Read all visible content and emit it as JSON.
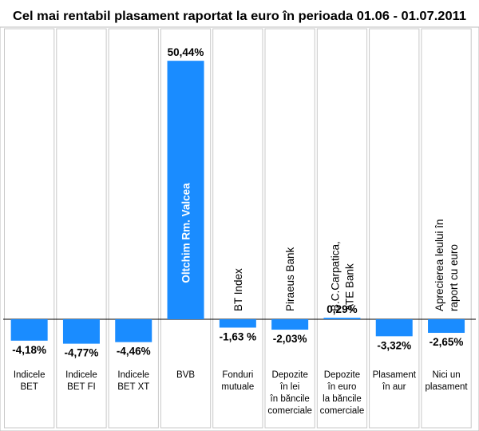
{
  "chart_data": {
    "type": "bar",
    "title": "Cel mai rentabil plasament raportat la euro în perioada 01.06 - 01.07.2011",
    "categories": [
      [
        "Indicele",
        "BET"
      ],
      [
        "Indicele",
        "BET FI"
      ],
      [
        "Indicele",
        "BET XT"
      ],
      [
        "BVB"
      ],
      [
        "Fonduri",
        "mutuale"
      ],
      [
        "Depozite",
        "în lei",
        "în băncile",
        "comerciale"
      ],
      [
        "Depozite",
        "în euro",
        "la băncile",
        "comerciale"
      ],
      [
        "Plasament",
        "în aur"
      ],
      [
        "Nici un",
        "plasament"
      ]
    ],
    "sublabels": [
      [],
      [],
      [],
      [
        "Oltchim Rm. Valcea"
      ],
      [
        "BT Index"
      ],
      [
        "Piraeus  Bank"
      ],
      [
        "B.C.Carpatica,",
        "ATE Bank"
      ],
      [],
      [
        "Aprecierea leului în",
        "raport cu euro"
      ]
    ],
    "values": [
      -4.18,
      -4.77,
      -4.46,
      50.44,
      -1.63,
      -2.03,
      0.29,
      -3.32,
      -2.65
    ],
    "value_labels": [
      "-4,18%",
      "-4,77%",
      "-4,46%",
      "50,44%",
      "-1,63 %",
      "-2,03%",
      "0,29%",
      "-3,32%",
      "-2,65%"
    ],
    "bar_color": "#1a8cff",
    "background": "#ffffff",
    "divider_color": "#c8c8c8",
    "grid": false,
    "legend": "none"
  }
}
